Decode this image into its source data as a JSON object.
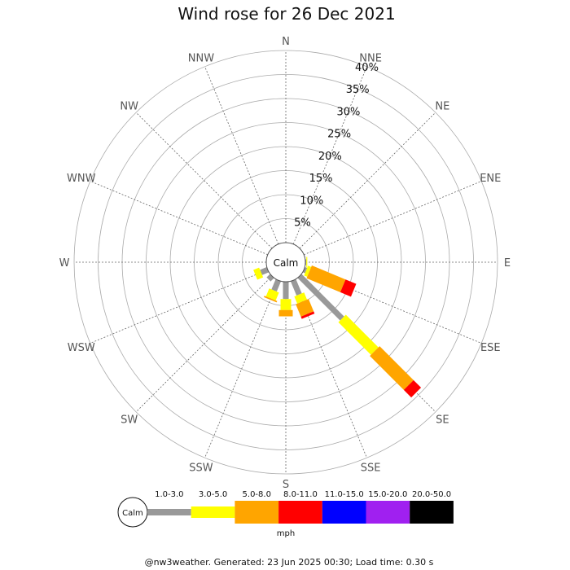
{
  "title": "Wind rose for 26 Dec 2021",
  "calm_label": "Calm",
  "unit": "mph",
  "footer": "@nw3weather. Generated: 23 Jun 2025 00:30; Load time: 0.30 s",
  "chart_data": {
    "type": "wind-rose",
    "title": "Wind rose for 26 Dec 2021",
    "directions": [
      "N",
      "NNE",
      "NE",
      "ENE",
      "E",
      "ESE",
      "SE",
      "SSE",
      "S",
      "SSW",
      "SW",
      "WSW",
      "W",
      "WNW",
      "NW",
      "NNW"
    ],
    "radial_ticks": [
      "5%",
      "10%",
      "15%",
      "20%",
      "25%",
      "30%",
      "35%",
      "40%"
    ],
    "radial_max": 40,
    "bins": [
      {
        "label": "1.0-3.0",
        "color": "#999999"
      },
      {
        "label": "3.0-5.0",
        "color": "#ffff00"
      },
      {
        "label": "5.0-8.0",
        "color": "#ffa500"
      },
      {
        "label": "8.0-11.0",
        "color": "#ff0000"
      },
      {
        "label": "11.0-15.0",
        "color": "#0000ff"
      },
      {
        "label": "15.0-20.0",
        "color": "#a020f0"
      },
      {
        "label": "20.0-50.0",
        "color": "#000000"
      }
    ],
    "frequencies_percent": {
      "E": [
        0.2,
        0.2
      ],
      "ESE": [
        0.5,
        0.7,
        7.6,
        2.4
      ],
      "SE": [
        12.5,
        9.6,
        10.0,
        2.2
      ],
      "SSE": [
        3.2,
        1.6,
        2.8,
        0.5
      ],
      "S": [
        3.6,
        2.3,
        1.3
      ],
      "SSW": [
        2.3,
        1.8,
        0.3
      ],
      "SW": [
        1.0
      ],
      "WSW": [
        1.5,
        1.3
      ]
    },
    "grid": true
  }
}
